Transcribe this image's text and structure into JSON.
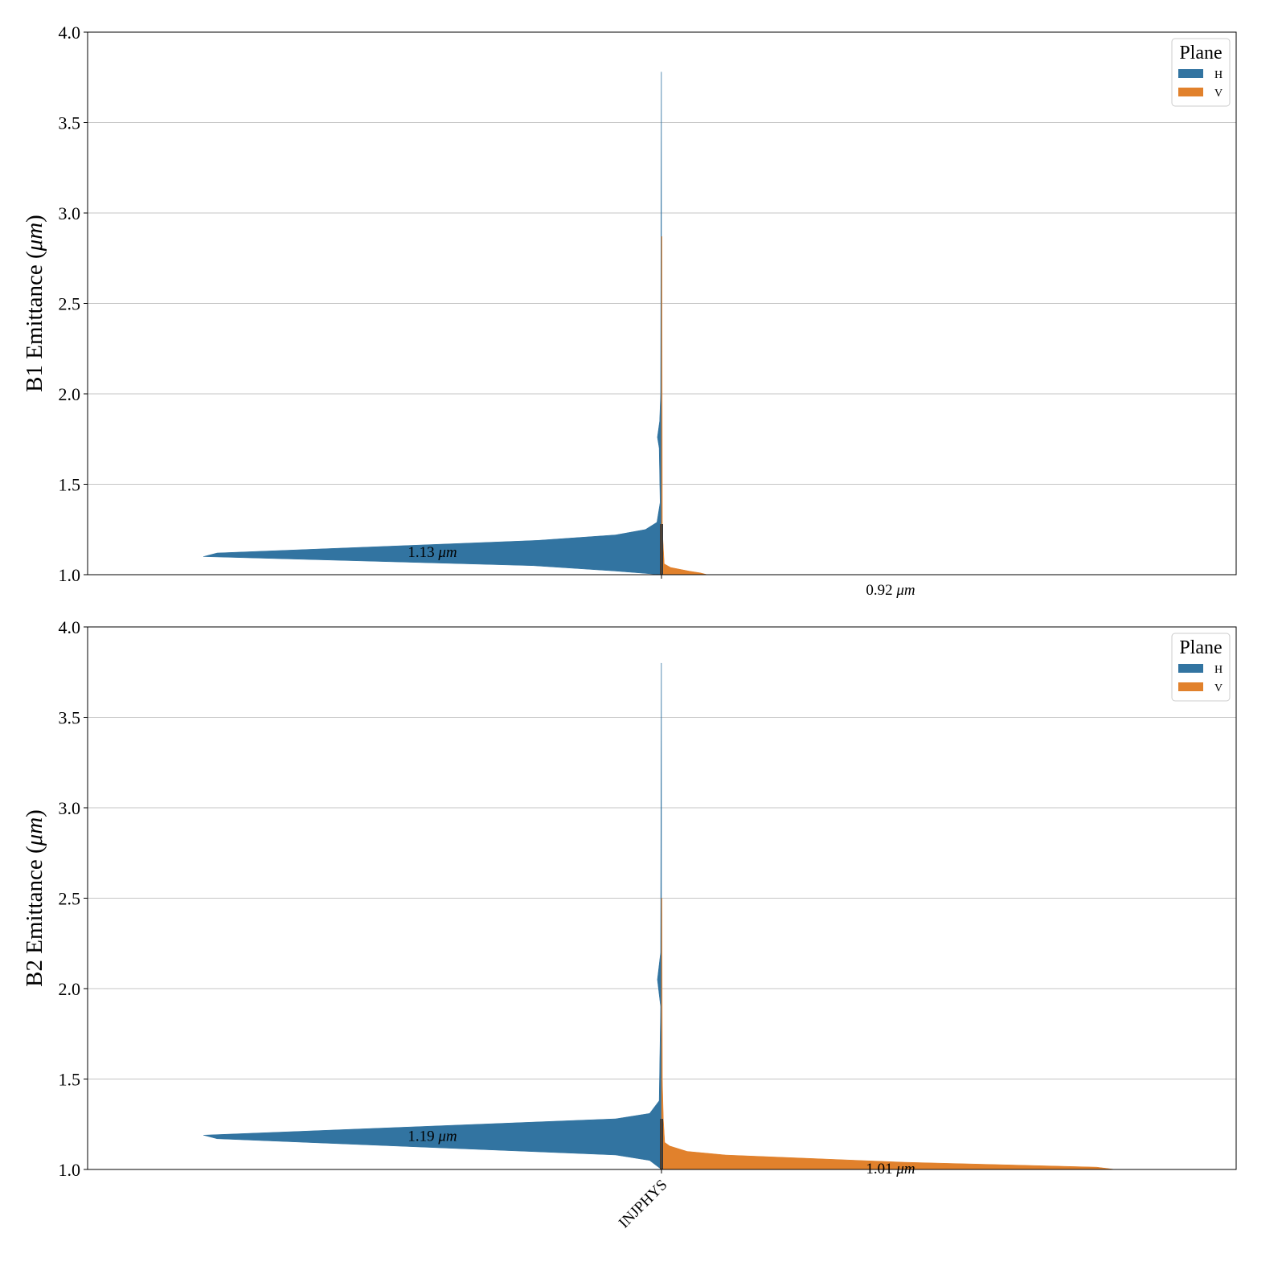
{
  "chart_data": {
    "type": "violin",
    "subtype": "split violin",
    "x_category_label": "INJPHYS",
    "legend": {
      "title": "Plane",
      "entries": [
        "H",
        "V"
      ],
      "placement": "top-right"
    },
    "colors": {
      "H": "#3274a1",
      "V": "#e1812c"
    },
    "unit_label": "μm",
    "ylim": [
      1.0,
      4.0
    ],
    "yticks": [
      "1.0",
      "1.5",
      "2.0",
      "2.5",
      "3.0",
      "3.5",
      "4.0"
    ],
    "grid": true,
    "panels": [
      {
        "ylabel_prefix": "B1 Emittance (",
        "ylabel_unit": "μm",
        "ylabel_suffix": ")",
        "show_xtick_label": false,
        "series": [
          {
            "name": "H",
            "median_label": "1.13",
            "median": 1.13,
            "profile": [
              [
                1.0,
                0
              ],
              [
                1.02,
                0.1
              ],
              [
                1.05,
                0.28
              ],
              [
                1.1,
                1.0
              ],
              [
                1.12,
                0.97
              ],
              [
                1.19,
                0.27
              ],
              [
                1.22,
                0.1
              ],
              [
                1.25,
                0.035
              ],
              [
                1.29,
                0.01
              ],
              [
                1.4,
                0.003
              ],
              [
                1.7,
                0.005
              ],
              [
                1.76,
                0.009
              ],
              [
                1.85,
                0.004
              ],
              [
                2.0,
                0.002
              ],
              [
                3.78,
                0.0005
              ]
            ]
          },
          {
            "name": "V",
            "median_label": "0.92",
            "median": 0.92,
            "profile": [
              [
                1.0,
                0.1
              ],
              [
                1.01,
                0.085
              ],
              [
                1.02,
                0.06
              ],
              [
                1.04,
                0.02
              ],
              [
                1.06,
                0.006
              ],
              [
                1.25,
                0.002
              ],
              [
                2.87,
                0.001
              ]
            ]
          }
        ]
      },
      {
        "ylabel_prefix": "B2 Emittance (",
        "ylabel_unit": "μm",
        "ylabel_suffix": ")",
        "show_xtick_label": true,
        "series": [
          {
            "name": "H",
            "median_label": "1.19",
            "median": 1.19,
            "profile": [
              [
                1.0,
                0
              ],
              [
                1.05,
                0.026
              ],
              [
                1.08,
                0.1
              ],
              [
                1.17,
                0.97
              ],
              [
                1.19,
                1.0
              ],
              [
                1.28,
                0.1
              ],
              [
                1.31,
                0.026
              ],
              [
                1.38,
                0.005
              ],
              [
                1.9,
                0.002
              ],
              [
                2.05,
                0.009
              ],
              [
                2.2,
                0.002
              ],
              [
                3.8,
                0.0005
              ]
            ]
          },
          {
            "name": "V",
            "median_label": "1.01",
            "median": 1.01,
            "profile": [
              [
                1.0,
                0.99
              ],
              [
                1.013,
                0.95
              ],
              [
                1.04,
                0.53
              ],
              [
                1.08,
                0.14
              ],
              [
                1.1,
                0.056
              ],
              [
                1.13,
                0.018
              ],
              [
                1.15,
                0.007
              ],
              [
                1.28,
                0.004
              ],
              [
                1.5,
                0.002
              ],
              [
                2.5,
                0.001
              ]
            ]
          }
        ]
      }
    ]
  }
}
